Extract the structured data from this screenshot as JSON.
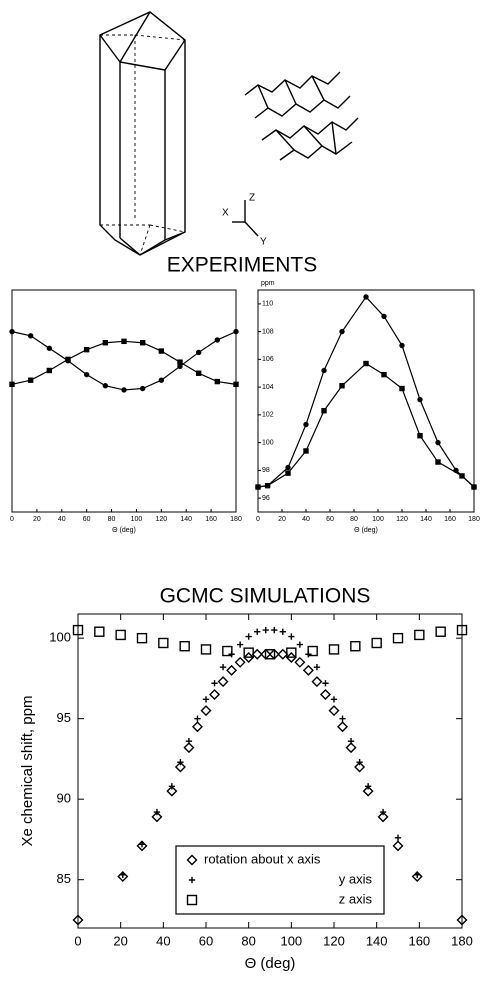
{
  "headings": [
    "EXPERIMENTS",
    "GCMC SIMULATIONS"
  ],
  "diagram": {
    "axes": [
      "X",
      "Y",
      "Z"
    ]
  },
  "chart_data": [
    {
      "type": "scatter",
      "xlabel": "Θ (deg)",
      "xlim": [
        0,
        180
      ],
      "xticks": [
        0,
        20,
        40,
        60,
        80,
        100,
        120,
        140,
        160,
        180
      ],
      "ylim": [
        95,
        111
      ],
      "grid": false,
      "series": [
        {
          "marker": "circle",
          "line": true,
          "color": "#000000",
          "x": [
            0,
            15,
            30,
            45,
            60,
            75,
            90,
            105,
            120,
            135,
            150,
            165,
            180
          ],
          "values": [
            108.0,
            107.7,
            106.8,
            105.9,
            104.9,
            104.1,
            103.8,
            103.9,
            104.5,
            105.5,
            106.5,
            107.4,
            108.0
          ]
        },
        {
          "marker": "square",
          "line": true,
          "color": "#000000",
          "x": [
            0,
            15,
            30,
            45,
            60,
            75,
            90,
            105,
            120,
            135,
            150,
            165,
            180
          ],
          "values": [
            104.2,
            104.5,
            105.2,
            106.0,
            106.7,
            107.2,
            107.3,
            107.2,
            106.6,
            105.8,
            105.0,
            104.4,
            104.2
          ]
        }
      ]
    },
    {
      "type": "scatter",
      "xlabel": "Θ (deg)",
      "ylabel": "ppm",
      "xlim": [
        0,
        180
      ],
      "xticks": [
        0,
        20,
        40,
        60,
        80,
        100,
        120,
        140,
        160,
        180
      ],
      "ylim": [
        95,
        111
      ],
      "yticks": [
        96,
        98,
        100,
        102,
        104,
        106,
        108,
        110
      ],
      "grid": false,
      "series": [
        {
          "marker": "circle",
          "line": true,
          "color": "#000000",
          "x": [
            0,
            8,
            25,
            40,
            55,
            70,
            90,
            105,
            120,
            135,
            150,
            165,
            180
          ],
          "values": [
            96.8,
            96.9,
            98.2,
            101.3,
            105.2,
            108.0,
            110.5,
            109.1,
            107.0,
            103.1,
            100.0,
            98.0,
            96.8
          ]
        },
        {
          "marker": "square",
          "line": true,
          "color": "#000000",
          "x": [
            0,
            8,
            25,
            40,
            55,
            70,
            90,
            105,
            120,
            135,
            150,
            170,
            180
          ],
          "values": [
            96.8,
            96.9,
            97.8,
            99.4,
            102.3,
            104.1,
            105.7,
            104.9,
            103.9,
            100.5,
            98.6,
            97.6,
            96.8
          ]
        }
      ]
    },
    {
      "type": "scatter",
      "title": "GCMC SIMULATIONS",
      "xlabel": "Θ (deg)",
      "ylabel": "Xe chemical shift, ppm",
      "xlim": [
        0,
        180
      ],
      "xticks": [
        0,
        20,
        40,
        60,
        80,
        100,
        120,
        140,
        160,
        180
      ],
      "ylim": [
        82,
        101.5
      ],
      "yticks": [
        85,
        90,
        95,
        100
      ],
      "grid": false,
      "legend": "lower center",
      "series": [
        {
          "name": "rotation about x axis",
          "marker": "diamond",
          "line": false,
          "color": "#000000",
          "x": [
            0,
            21,
            30,
            37,
            44,
            48,
            52,
            56,
            60,
            64,
            68,
            72,
            76,
            80,
            84,
            88,
            92,
            96,
            100,
            104,
            108,
            112,
            116,
            120,
            124,
            128,
            132,
            136,
            143,
            150,
            159,
            180
          ],
          "values": [
            82.5,
            85.2,
            87.1,
            88.9,
            90.5,
            92.0,
            93.2,
            94.5,
            95.5,
            96.5,
            97.3,
            98.0,
            98.5,
            98.8,
            99.0,
            99.0,
            99.0,
            99.0,
            98.8,
            98.5,
            98.0,
            97.3,
            96.5,
            95.5,
            94.5,
            93.2,
            92.0,
            90.5,
            88.9,
            87.1,
            85.2,
            82.5
          ]
        },
        {
          "name": "y axis",
          "marker": "plus",
          "line": false,
          "color": "#000000",
          "x": [
            21,
            30,
            37,
            44,
            48,
            52,
            56,
            60,
            64,
            68,
            72,
            76,
            80,
            84,
            88,
            92,
            96,
            100,
            104,
            108,
            112,
            116,
            120,
            124,
            128,
            132,
            136,
            143,
            150,
            159
          ],
          "values": [
            85.3,
            87.2,
            89.2,
            90.8,
            92.3,
            93.6,
            95.0,
            96.2,
            97.2,
            98.2,
            99.0,
            99.6,
            100.1,
            100.4,
            100.5,
            100.5,
            100.4,
            100.1,
            99.6,
            99.0,
            98.2,
            97.2,
            96.2,
            95.0,
            93.6,
            92.3,
            90.8,
            89.2,
            87.6,
            85.3
          ]
        },
        {
          "name": "z axis",
          "marker": "square",
          "line": false,
          "color": "#000000",
          "x": [
            0,
            10,
            20,
            30,
            40,
            50,
            60,
            70,
            80,
            90,
            100,
            110,
            120,
            130,
            140,
            150,
            160,
            170,
            180
          ],
          "values": [
            100.5,
            100.4,
            100.2,
            100.0,
            99.7,
            99.5,
            99.3,
            99.2,
            99.1,
            99.0,
            99.1,
            99.2,
            99.3,
            99.5,
            99.7,
            100.0,
            100.2,
            100.4,
            100.5
          ]
        }
      ]
    }
  ]
}
